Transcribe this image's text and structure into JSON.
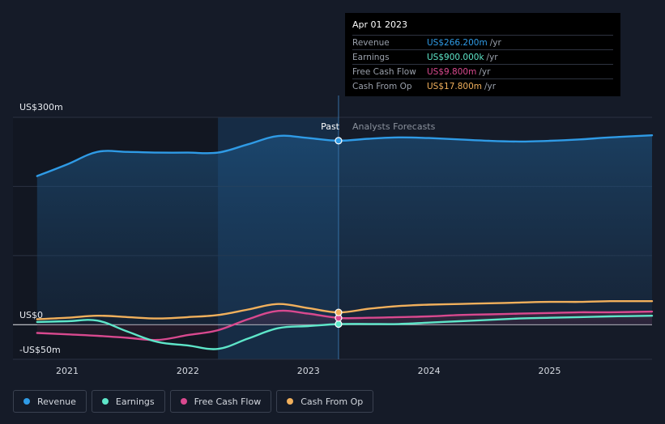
{
  "colors": {
    "revenue": "#2f9be6",
    "earnings": "#5ee6c9",
    "free_cash_flow": "#d9498f",
    "cash_from_op": "#f1b05c",
    "background": "#151b28",
    "grid": "#2b3242"
  },
  "chart": {
    "past_label": "Past",
    "forecast_label": "Analysts Forecasts",
    "y_top_label": "US$300m",
    "y_zero_label": "US$0",
    "y_bottom_label": "-US$50m"
  },
  "tooltip": {
    "date": "Apr 01 2023",
    "rows": [
      {
        "name": "Revenue",
        "value": "US$266.200m",
        "unit": "/yr"
      },
      {
        "name": "Earnings",
        "value": "US$900.000k",
        "unit": "/yr"
      },
      {
        "name": "Free Cash Flow",
        "value": "US$9.800m",
        "unit": "/yr"
      },
      {
        "name": "Cash From Op",
        "value": "US$17.800m",
        "unit": "/yr"
      }
    ]
  },
  "legend": [
    {
      "label": "Revenue",
      "color_key": "revenue"
    },
    {
      "label": "Earnings",
      "color_key": "earnings"
    },
    {
      "label": "Free Cash Flow",
      "color_key": "free_cash_flow"
    },
    {
      "label": "Cash From Op",
      "color_key": "cash_from_op"
    }
  ],
  "chart_data": {
    "type": "line",
    "x_ticks": [
      "2021",
      "2022",
      "2023",
      "2024",
      "2025"
    ],
    "x_tick_values": [
      2021.0,
      2022.0,
      2023.0,
      2024.0,
      2025.0
    ],
    "xlim": [
      2020.55,
      2025.85
    ],
    "ylim": [
      -50,
      300
    ],
    "past_end": 2023.25,
    "highlight_start": 2022.25,
    "grid": true,
    "legend_position": "bottom-left",
    "series": [
      {
        "name": "Revenue",
        "color_key": "revenue",
        "x": [
          2020.75,
          2021.0,
          2021.25,
          2021.5,
          2021.75,
          2022.0,
          2022.25,
          2022.5,
          2022.75,
          2023.0,
          2023.25,
          2023.5,
          2023.75,
          2024.0,
          2024.25,
          2024.5,
          2024.75,
          2025.0,
          2025.25,
          2025.5,
          2025.85
        ],
        "y": [
          215,
          232,
          250,
          250,
          249,
          249,
          249,
          261,
          273,
          270,
          266.2,
          269,
          271,
          270,
          268,
          266,
          265,
          266,
          268,
          271,
          274
        ]
      },
      {
        "name": "Earnings",
        "color_key": "earnings",
        "x": [
          2020.75,
          2021.0,
          2021.25,
          2021.5,
          2021.75,
          2022.0,
          2022.25,
          2022.5,
          2022.75,
          2023.0,
          2023.25,
          2023.5,
          2023.75,
          2024.0,
          2024.25,
          2024.5,
          2024.75,
          2025.0,
          2025.25,
          2025.5,
          2025.85
        ],
        "y": [
          4,
          5,
          6,
          -10,
          -25,
          -30,
          -35,
          -20,
          -5,
          -2,
          0.9,
          1,
          1,
          3,
          5,
          7,
          9,
          10,
          11,
          12,
          13
        ]
      },
      {
        "name": "Free Cash Flow",
        "color_key": "free_cash_flow",
        "x": [
          2020.75,
          2021.0,
          2021.25,
          2021.5,
          2021.75,
          2022.0,
          2022.25,
          2022.5,
          2022.75,
          2023.0,
          2023.25,
          2023.5,
          2023.75,
          2024.0,
          2024.25,
          2024.5,
          2024.75,
          2025.0,
          2025.25,
          2025.5,
          2025.85
        ],
        "y": [
          -12,
          -14,
          -16,
          -19,
          -22,
          -15,
          -8,
          8,
          20,
          16,
          9.8,
          10,
          11,
          12,
          14,
          15,
          16,
          17,
          18,
          18,
          19
        ]
      },
      {
        "name": "Cash From Op",
        "color_key": "cash_from_op",
        "x": [
          2020.75,
          2021.0,
          2021.25,
          2021.5,
          2021.75,
          2022.0,
          2022.25,
          2022.5,
          2022.75,
          2023.0,
          2023.25,
          2023.5,
          2023.75,
          2024.0,
          2024.25,
          2024.5,
          2024.75,
          2025.0,
          2025.25,
          2025.5,
          2025.85
        ],
        "y": [
          8,
          10,
          13,
          11,
          9,
          11,
          14,
          22,
          30,
          24,
          17.8,
          23,
          27,
          29,
          30,
          31,
          32,
          33,
          33,
          34,
          34
        ]
      }
    ]
  }
}
